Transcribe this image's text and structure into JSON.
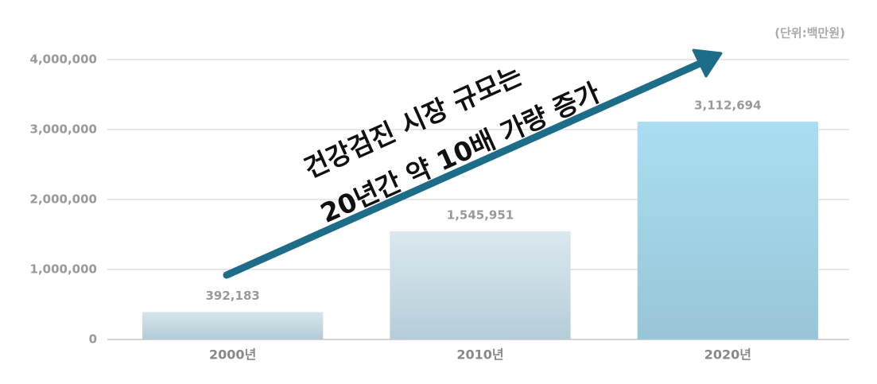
{
  "chart_data": {
    "type": "bar",
    "unit_label": "(단위:백만원)",
    "categories": [
      "2000년",
      "2010년",
      "2020년"
    ],
    "values": [
      392183,
      1545951,
      3112694
    ],
    "value_labels": [
      "392,183",
      "1,545,951",
      "3,112,694"
    ],
    "gradients": [
      [
        "#d6e5ec",
        "#b3cbd7"
      ],
      [
        "#dbe8ef",
        "#b5cdd8"
      ],
      [
        "#aadef2",
        "#98c5d7"
      ]
    ],
    "ylim": [
      0,
      4000000
    ],
    "yticks": [
      {
        "value": 0,
        "label": "0"
      },
      {
        "value": 1000000,
        "label": "1,000,000"
      },
      {
        "value": 2000000,
        "label": "2,000,000"
      },
      {
        "value": 3000000,
        "label": "3,000,000"
      },
      {
        "value": 4000000,
        "label": "4,000,000"
      }
    ],
    "grid": true,
    "annotation": {
      "lines": [
        "건강검진 시장 규모는",
        "20년간 약 10배 가량 증가"
      ],
      "color": "#1d6d89"
    }
  }
}
